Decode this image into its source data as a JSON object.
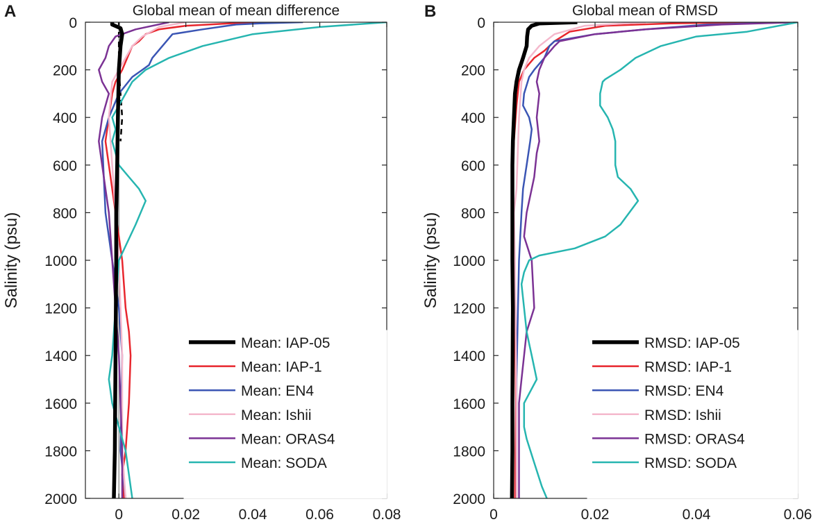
{
  "chart_data": [
    {
      "type": "line",
      "panel_label": "A",
      "title": "Global mean of mean difference",
      "xlabel": "",
      "ylabel": "Salinity (psu)",
      "xlim": [
        -0.01,
        0.08
      ],
      "ylim": [
        0,
        2000
      ],
      "y_reversed": true,
      "x_tick_labels": [
        "0",
        "0.02",
        "0.04",
        "0.06",
        "0.08"
      ],
      "x_ticks": [
        0,
        0.02,
        0.04,
        0.06,
        0.08
      ],
      "y_tick_labels": [
        "0",
        "200",
        "400",
        "600",
        "800",
        "1000",
        "1200",
        "1400",
        "1600",
        "1800",
        "2000"
      ],
      "y_ticks": [
        0,
        200,
        400,
        600,
        800,
        1000,
        1200,
        1400,
        1600,
        1800,
        2000
      ],
      "zero_line": true,
      "legend_position": "bottom-right",
      "series": [
        {
          "name": "Mean: IAP-05",
          "color": "#000000",
          "width": 5.5,
          "x": [
            -0.002,
            -0.002,
            0.0005,
            0.001,
            0.0005,
            0.0,
            -0.0003,
            -0.0005,
            -0.0008,
            -0.0008,
            -0.001,
            -0.0012,
            -0.0015
          ],
          "y": [
            0,
            10,
            25,
            50,
            100,
            200,
            400,
            600,
            800,
            1000,
            1400,
            1800,
            2000
          ]
        },
        {
          "name": "Mean: IAP-1",
          "color": "#e8262d",
          "width": 2.5,
          "x": [
            0.045,
            0.033,
            0.02,
            0.012,
            0.008,
            0.006,
            0.004,
            0.001,
            -0.001,
            -0.002,
            -0.003,
            -0.004,
            -0.003,
            -0.001,
            0.001,
            0.002,
            0.003,
            0.0035,
            0.003,
            0.002,
            0.001,
            0.0015
          ],
          "y": [
            0,
            5,
            15,
            30,
            50,
            80,
            100,
            200,
            250,
            300,
            400,
            500,
            600,
            800,
            1000,
            1200,
            1300,
            1400,
            1600,
            1800,
            1900,
            2000
          ]
        },
        {
          "name": "Mean: EN4",
          "color": "#3a55b4",
          "width": 2.5,
          "x": [
            0.055,
            0.042,
            0.035,
            0.025,
            0.016,
            0.013,
            0.01,
            0.009,
            0.007,
            0.004,
            0.0,
            -0.003,
            -0.005,
            -0.004,
            -0.002,
            -0.001,
            0.0,
            0.001,
            0.0005,
            0.002
          ],
          "y": [
            0,
            5,
            10,
            30,
            50,
            100,
            150,
            180,
            200,
            230,
            300,
            400,
            500,
            800,
            1000,
            1100,
            1200,
            1400,
            1800,
            2000
          ]
        },
        {
          "name": "Mean: Ishii",
          "color": "#f4b8cc",
          "width": 2.5,
          "x": [
            0.02,
            0.012,
            0.007,
            0.004,
            0.002,
            0.0,
            -0.002,
            -0.003,
            -0.002,
            -0.001,
            0.0,
            0.001,
            0.001,
            0.002
          ],
          "y": [
            0,
            20,
            60,
            100,
            150,
            200,
            250,
            400,
            600,
            800,
            1000,
            1400,
            1800,
            2000
          ]
        },
        {
          "name": "Mean: ORAS4",
          "color": "#7b3294",
          "width": 2.5,
          "x": [
            0.015,
            0.005,
            -0.001,
            -0.003,
            -0.004,
            -0.006,
            -0.005,
            -0.003,
            -0.005,
            -0.006,
            -0.005,
            -0.004,
            -0.003,
            -0.002,
            0.0,
            0.001,
            0.001
          ],
          "y": [
            0,
            30,
            60,
            100,
            150,
            200,
            250,
            300,
            400,
            500,
            600,
            700,
            800,
            1000,
            1400,
            1800,
            2000
          ]
        },
        {
          "name": "Mean: SODA",
          "color": "#26b5b0",
          "width": 2.5,
          "x": [
            0.08,
            0.06,
            0.04,
            0.025,
            0.015,
            0.008,
            0.004,
            0.002,
            0.0,
            -0.002,
            -0.001,
            -0.002,
            0.0,
            0.003,
            0.006,
            0.008,
            0.005,
            0.0,
            -0.001,
            -0.002,
            -0.003,
            -0.002,
            0.0,
            0.002,
            0.003,
            0.004
          ],
          "y": [
            0,
            20,
            50,
            100,
            150,
            200,
            250,
            300,
            350,
            400,
            450,
            500,
            600,
            650,
            700,
            750,
            850,
            1000,
            1200,
            1400,
            1500,
            1600,
            1700,
            1800,
            1900,
            2000
          ]
        }
      ],
      "reference_dashed": {
        "x": [
          0.0,
          0.0,
          0.0,
          0.0005,
          0.001,
          0.0005
        ],
        "y": [
          0,
          100,
          200,
          300,
          400,
          500
        ]
      }
    },
    {
      "type": "line",
      "panel_label": "B",
      "title": "Global mean of RMSD",
      "xlabel": "",
      "ylabel": "Salinity (psu)",
      "xlim": [
        0,
        0.06
      ],
      "ylim": [
        0,
        2000
      ],
      "y_reversed": true,
      "x_tick_labels": [
        "0",
        "0.02",
        "0.04",
        "0.06"
      ],
      "x_ticks": [
        0,
        0.02,
        0.04,
        0.06
      ],
      "y_tick_labels": [
        "0",
        "200",
        "400",
        "600",
        "800",
        "1000",
        "1200",
        "1400",
        "1600",
        "1800",
        "2000"
      ],
      "y_ticks": [
        0,
        200,
        400,
        600,
        800,
        1000,
        1200,
        1400,
        1600,
        1800,
        2000
      ],
      "zero_line": false,
      "legend_position": "bottom-right",
      "series": [
        {
          "name": "RMSD: IAP-05",
          "color": "#000000",
          "width": 5.5,
          "x": [
            0.0165,
            0.009,
            0.0075,
            0.0068,
            0.0066,
            0.0065,
            0.0058,
            0.005,
            0.0045,
            0.0042,
            0.004,
            0.0038,
            0.0037,
            0.0037,
            0.0037,
            0.0038,
            0.0037,
            0.0037,
            0.0036
          ],
          "y": [
            0,
            5,
            15,
            30,
            60,
            100,
            150,
            200,
            250,
            300,
            400,
            500,
            600,
            800,
            1000,
            1200,
            1600,
            1800,
            2000
          ]
        },
        {
          "name": "RMSD: IAP-1",
          "color": "#e8262d",
          "width": 2.5,
          "x": [
            0.052,
            0.035,
            0.022,
            0.015,
            0.012,
            0.01,
            0.008,
            0.006,
            0.005,
            0.0045,
            0.004,
            0.0037,
            0.0037,
            0.004,
            0.0042,
            0.0044,
            0.0043,
            0.0042
          ],
          "y": [
            0,
            5,
            15,
            40,
            80,
            120,
            150,
            200,
            250,
            350,
            500,
            700,
            800,
            1000,
            1200,
            1600,
            1800,
            2000
          ]
        },
        {
          "name": "RMSD: EN4",
          "color": "#3a55b4",
          "width": 2.5,
          "x": [
            0.06,
            0.042,
            0.03,
            0.02,
            0.012,
            0.011,
            0.01,
            0.008,
            0.007,
            0.006,
            0.0058,
            0.007,
            0.0075,
            0.0072,
            0.0065,
            0.0058,
            0.0055,
            0.005,
            0.0048,
            0.0045,
            0.0045,
            0.0045
          ],
          "y": [
            0,
            10,
            30,
            50,
            80,
            100,
            150,
            200,
            230,
            300,
            350,
            400,
            450,
            500,
            600,
            700,
            800,
            1000,
            1200,
            1500,
            1800,
            2000
          ]
        },
        {
          "name": "RMSD: Ishii",
          "color": "#f4b8cc",
          "width": 2.5,
          "x": [
            0.03,
            0.018,
            0.012,
            0.009,
            0.007,
            0.006,
            0.0055,
            0.005,
            0.0045,
            0.004,
            0.0042,
            0.0045,
            0.0045
          ],
          "y": [
            0,
            15,
            50,
            100,
            150,
            200,
            250,
            400,
            700,
            800,
            1000,
            1600,
            2000
          ]
        },
        {
          "name": "RMSD: ORAS4",
          "color": "#7b3294",
          "width": 2.5,
          "x": [
            0.06,
            0.045,
            0.03,
            0.02,
            0.013,
            0.012,
            0.01,
            0.009,
            0.0085,
            0.009,
            0.0085,
            0.009,
            0.0085,
            0.008,
            0.0075,
            0.0065,
            0.006,
            0.0075,
            0.008,
            0.0065,
            0.0055,
            0.005,
            0.005,
            0.005
          ],
          "y": [
            0,
            10,
            30,
            50,
            80,
            100,
            150,
            200,
            250,
            300,
            400,
            500,
            550,
            650,
            700,
            800,
            900,
            1000,
            1200,
            1300,
            1500,
            1600,
            1800,
            2000
          ]
        },
        {
          "name": "RMSD: SODA",
          "color": "#26b5b0",
          "width": 2.5,
          "x": [
            0.06,
            0.05,
            0.04,
            0.033,
            0.028,
            0.025,
            0.022,
            0.0215,
            0.021,
            0.021,
            0.0225,
            0.0235,
            0.024,
            0.024,
            0.0245,
            0.027,
            0.0285,
            0.025,
            0.022,
            0.016,
            0.009,
            0.007,
            0.006,
            0.0055,
            0.006,
            0.0065,
            0.007,
            0.0075,
            0.0085,
            0.006,
            0.006,
            0.0065,
            0.008,
            0.0095,
            0.0105
          ],
          "y": [
            0,
            40,
            60,
            100,
            150,
            200,
            240,
            250,
            300,
            350,
            400,
            450,
            500,
            600,
            650,
            700,
            750,
            850,
            900,
            950,
            980,
            1000,
            1050,
            1100,
            1200,
            1300,
            1350,
            1400,
            1500,
            1600,
            1700,
            1750,
            1850,
            1950,
            2000
          ]
        }
      ]
    }
  ]
}
